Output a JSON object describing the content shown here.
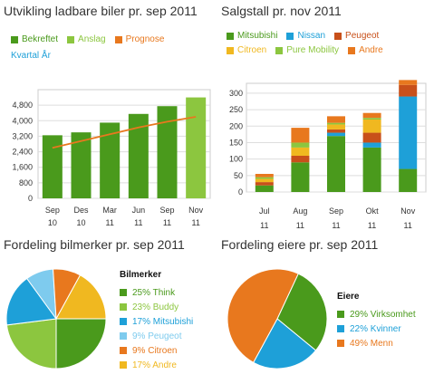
{
  "colors": {
    "green_dark": "#4a9a1c",
    "green_light": "#8cc63f",
    "orange": "#e8781e",
    "blue": "#1ea0d8",
    "red_brown": "#c8501a",
    "yellow": "#f0b820",
    "pale_blue": "#7ecbee",
    "axis_text": "#333333",
    "grid": "#dddddd"
  },
  "chart_data": [
    {
      "type": "bar",
      "title": "Utvikling ladbare biler pr. sep 2011",
      "legend": [
        "Bekreftet",
        "Anslag",
        "Prognose"
      ],
      "legend_extra": "Kvartal År",
      "categories": [
        [
          "Sep",
          "10"
        ],
        [
          "Des",
          "10"
        ],
        [
          "Mar",
          "11"
        ],
        [
          "Jun",
          "11"
        ],
        [
          "Sep",
          "11"
        ],
        [
          "Nov",
          "11"
        ]
      ],
      "series": [
        {
          "name": "Bekreftet",
          "values": [
            3250,
            3400,
            3900,
            4350,
            4750,
            null
          ]
        },
        {
          "name": "Anslag",
          "values": [
            null,
            null,
            null,
            null,
            null,
            5200
          ]
        },
        {
          "name": "Prognose",
          "values": [
            2600,
            2950,
            3300,
            3650,
            3950,
            4200
          ]
        }
      ],
      "yticks": [
        "0",
        "800",
        "1,600",
        "2,400",
        "3,200",
        "4,000",
        "4,800"
      ],
      "ylim": [
        0,
        5600
      ]
    },
    {
      "type": "bar",
      "stacked": true,
      "title": "Salgstall pr. nov 2011",
      "legend": [
        "Mitsubishi",
        "Nissan",
        "Peugeot",
        "Citroen",
        "Pure Mobility",
        "Andre"
      ],
      "categories": [
        [
          "Jul",
          "11"
        ],
        [
          "Aug",
          "11"
        ],
        [
          "Sep",
          "11"
        ],
        [
          "Okt",
          "11"
        ],
        [
          "Nov",
          "11"
        ]
      ],
      "series": [
        {
          "name": "Mitsubishi",
          "values": [
            20,
            90,
            170,
            135,
            70
          ]
        },
        {
          "name": "Nissan",
          "values": [
            0,
            0,
            10,
            15,
            220
          ]
        },
        {
          "name": "Peugeot",
          "values": [
            10,
            20,
            10,
            30,
            35
          ]
        },
        {
          "name": "Citroen",
          "values": [
            10,
            25,
            15,
            40,
            0
          ]
        },
        {
          "name": "Pure Mobility",
          "values": [
            5,
            15,
            5,
            5,
            0
          ]
        },
        {
          "name": "Andre",
          "values": [
            10,
            45,
            20,
            15,
            15
          ]
        }
      ],
      "yticks": [
        "0",
        "50",
        "100",
        "150",
        "200",
        "250",
        "300"
      ],
      "ylim": [
        0,
        330
      ]
    },
    {
      "type": "pie",
      "title": "Fordeling bilmerker pr. sep 2011",
      "legend_title": "Bilmerker",
      "slices": [
        {
          "name": "Think",
          "value": 25,
          "label": "25% Think"
        },
        {
          "name": "Buddy",
          "value": 23,
          "label": "23% Buddy"
        },
        {
          "name": "Mitsubishi",
          "value": 17,
          "label": "17% Mitsubishi"
        },
        {
          "name": "Peugeot",
          "value": 9,
          "label": "9% Peugeot"
        },
        {
          "name": "Citroen",
          "value": 9,
          "label": "9% Citroen"
        },
        {
          "name": "Andre",
          "value": 17,
          "label": "17% Andre"
        }
      ]
    },
    {
      "type": "pie",
      "title": "Fordeling eiere pr. sep 2011",
      "legend_title": "Eiere",
      "slices": [
        {
          "name": "Virksomhet",
          "value": 29,
          "label": "29% Virksomhet"
        },
        {
          "name": "Kvinner",
          "value": 22,
          "label": "22% Kvinner"
        },
        {
          "name": "Menn",
          "value": 49,
          "label": "49% Menn"
        }
      ]
    }
  ]
}
